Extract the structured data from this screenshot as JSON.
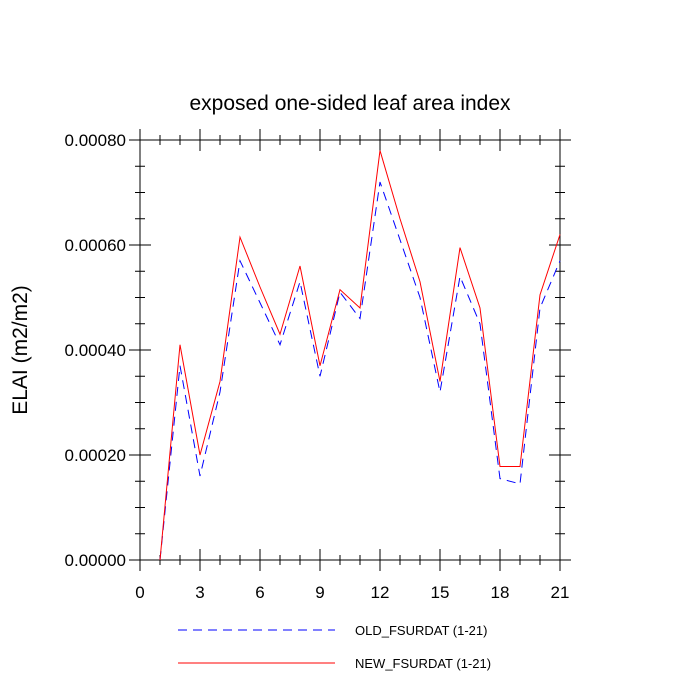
{
  "chart_data": {
    "type": "line",
    "title": "exposed one-sided leaf area index",
    "xlabel": "",
    "ylabel": "ELAI  (m2/m2)",
    "xlim": [
      0,
      21
    ],
    "ylim": [
      0,
      0.0008
    ],
    "xticks": [
      0,
      3,
      6,
      9,
      12,
      15,
      18,
      21
    ],
    "yticks": [
      0,
      0.0002,
      0.0004,
      0.0006,
      0.0008
    ],
    "ytick_labels": [
      "0.00000",
      "0.00020",
      "0.00040",
      "0.00060",
      "0.00080"
    ],
    "grid": false,
    "legend_position": "bottom",
    "x": [
      1,
      2,
      3,
      4,
      5,
      6,
      7,
      8,
      9,
      10,
      11,
      12,
      13,
      14,
      15,
      16,
      17,
      18,
      19,
      20,
      21
    ],
    "series": [
      {
        "name": "OLD_FSURDAT (1-21)",
        "color": "#0000ff",
        "style": "dashed",
        "values": [
          0.0,
          0.00037,
          0.00016,
          0.00032,
          0.00057,
          0.00049,
          0.00041,
          0.00053,
          0.00035,
          0.00051,
          0.00046,
          0.00072,
          0.00061,
          0.0005,
          0.00032,
          0.00054,
          0.00045,
          0.000155,
          0.000145,
          0.00048,
          0.00057
        ]
      },
      {
        "name": "NEW_FSURDAT (1-21)",
        "color": "#ff0000",
        "style": "solid",
        "values": [
          0.0,
          0.00041,
          0.0002,
          0.00034,
          0.000615,
          0.00052,
          0.00043,
          0.00056,
          0.00037,
          0.000515,
          0.00048,
          0.00078,
          0.00065,
          0.00053,
          0.00034,
          0.000595,
          0.00048,
          0.000178,
          0.000178,
          0.000505,
          0.00062
        ]
      }
    ]
  }
}
